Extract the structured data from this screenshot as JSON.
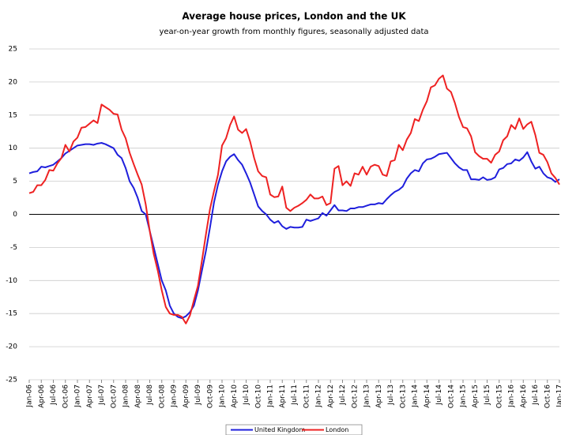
{
  "chart_data": {
    "type": "line",
    "title": "Average house prices, London and the UK",
    "subtitle": "year-on-year growth from monthly figures, seasonally adjusted data",
    "categories": [
      "Jan-06",
      null,
      null,
      "Apr-06",
      null,
      null,
      "Jul-06",
      null,
      null,
      "Oct-06",
      null,
      null,
      "Jan-07",
      null,
      null,
      "Apr-07",
      null,
      null,
      "Jul-07",
      null,
      null,
      "Oct-07",
      null,
      null,
      "Jan-08",
      null,
      null,
      "Apr-08",
      null,
      null,
      "Jul-08",
      null,
      null,
      "Oct-08",
      null,
      null,
      "Jan-09",
      null,
      null,
      "Apr-09",
      null,
      null,
      "Jul-09",
      null,
      null,
      "Oct-09",
      null,
      null,
      "Jan-10",
      null,
      null,
      "Apr-10",
      null,
      null,
      "Jul-10",
      null,
      null,
      "Oct-10",
      null,
      null,
      "Jan-11",
      null,
      null,
      "Apr-11",
      null,
      null,
      "Jul-11",
      null,
      null,
      "Oct-11",
      null,
      null,
      "Jan-12",
      null,
      null,
      "Apr-12",
      null,
      null,
      "Jul-12",
      null,
      null,
      "Oct-12",
      null,
      null,
      "Jan-13",
      null,
      null,
      "Apr-13",
      null,
      null,
      "Jul-13",
      null,
      null,
      "Oct-13",
      null,
      null,
      "Jan-14",
      null,
      null,
      "Apr-14",
      null,
      null,
      "Jul-14",
      null,
      null,
      "Oct-14",
      null,
      null,
      "Jan-15",
      null,
      null,
      "Apr-15",
      null,
      null,
      "Jul-15",
      null,
      null,
      "Oct-15",
      null,
      null,
      "Jan-16",
      null,
      null,
      "Apr-16",
      null,
      null,
      "Jul-16",
      null,
      null,
      "Oct-16",
      null,
      null,
      "Jan-17"
    ],
    "series": [
      {
        "name": "United Kingdom",
        "color": "#1f1fdc",
        "values": [
          6.2,
          6.4,
          6.5,
          7.2,
          7.1,
          7.3,
          7.5,
          8.0,
          8.5,
          9.2,
          9.6,
          10.0,
          10.4,
          10.5,
          10.6,
          10.6,
          10.5,
          10.7,
          10.8,
          10.6,
          10.3,
          10.0,
          9.0,
          8.5,
          7.0,
          5.0,
          4.0,
          2.5,
          0.5,
          0.0,
          -2.5,
          -5.0,
          -7.5,
          -10.0,
          -11.5,
          -13.8,
          -15.0,
          -15.5,
          -15.7,
          -15.4,
          -14.8,
          -13.8,
          -11.5,
          -8.5,
          -5.5,
          -2.0,
          1.8,
          4.5,
          6.5,
          8.0,
          8.7,
          9.1,
          8.2,
          7.5,
          6.2,
          4.8,
          3.0,
          1.2,
          0.5,
          0.0,
          -0.8,
          -1.3,
          -1.0,
          -1.8,
          -2.2,
          -1.9,
          -2.0,
          -2.0,
          -1.9,
          -0.8,
          -1.0,
          -0.8,
          -0.6,
          0.2,
          -0.2,
          0.6,
          1.4,
          0.6,
          0.6,
          0.5,
          0.9,
          0.9,
          1.1,
          1.1,
          1.3,
          1.5,
          1.5,
          1.7,
          1.6,
          2.3,
          2.9,
          3.4,
          3.7,
          4.2,
          5.4,
          6.2,
          6.7,
          6.5,
          7.7,
          8.3,
          8.4,
          8.7,
          9.1,
          9.2,
          9.3,
          8.5,
          7.7,
          7.1,
          6.7,
          6.7,
          5.3,
          5.3,
          5.2,
          5.6,
          5.2,
          5.3,
          5.6,
          6.8,
          7.0,
          7.6,
          7.7,
          8.3,
          8.1,
          8.6,
          9.4,
          8.0,
          6.9,
          7.2,
          6.2,
          5.6,
          5.4,
          4.9,
          5.3
        ]
      },
      {
        "name": "London",
        "color": "#ee2222",
        "values": [
          3.2,
          3.4,
          4.4,
          4.4,
          5.2,
          6.7,
          6.6,
          7.7,
          8.5,
          10.5,
          9.5,
          11.0,
          11.6,
          13.1,
          13.2,
          13.7,
          14.2,
          13.8,
          16.6,
          16.2,
          15.8,
          15.2,
          15.1,
          12.8,
          11.5,
          9.3,
          7.6,
          6.0,
          4.5,
          1.5,
          -2.5,
          -6.0,
          -8.5,
          -11.5,
          -14.0,
          -15.0,
          -15.2,
          -15.2,
          -15.5,
          -16.5,
          -15.3,
          -13.0,
          -10.8,
          -7.0,
          -3.0,
          0.8,
          3.5,
          6.0,
          10.4,
          11.5,
          13.5,
          14.8,
          12.8,
          12.3,
          12.9,
          11.0,
          8.5,
          6.5,
          5.8,
          5.6,
          3.0,
          2.6,
          2.7,
          4.2,
          1.0,
          0.5,
          1.0,
          1.3,
          1.7,
          2.2,
          3.0,
          2.4,
          2.4,
          2.7,
          1.4,
          1.7,
          6.9,
          7.3,
          4.4,
          5.0,
          4.3,
          6.2,
          6.0,
          7.2,
          6.0,
          7.2,
          7.5,
          7.3,
          6.0,
          5.8,
          8.0,
          8.2,
          10.5,
          9.7,
          11.3,
          12.3,
          14.4,
          14.1,
          15.8,
          17.1,
          19.2,
          19.5,
          20.5,
          21.0,
          19.0,
          18.5,
          16.8,
          14.7,
          13.2,
          13.0,
          11.8,
          9.4,
          8.8,
          8.4,
          8.4,
          7.8,
          9.0,
          9.5,
          11.2,
          11.8,
          13.5,
          12.9,
          14.5,
          12.9,
          13.6,
          14.0,
          12.0,
          9.3,
          9.0,
          7.9,
          6.2,
          5.5,
          4.5
        ]
      }
    ],
    "ylim": [
      -25,
      25
    ],
    "yticks": [
      -25,
      -20,
      -15,
      -10,
      -5,
      0,
      5,
      10,
      15,
      20,
      25
    ],
    "grid": true,
    "legend": "bottom"
  }
}
